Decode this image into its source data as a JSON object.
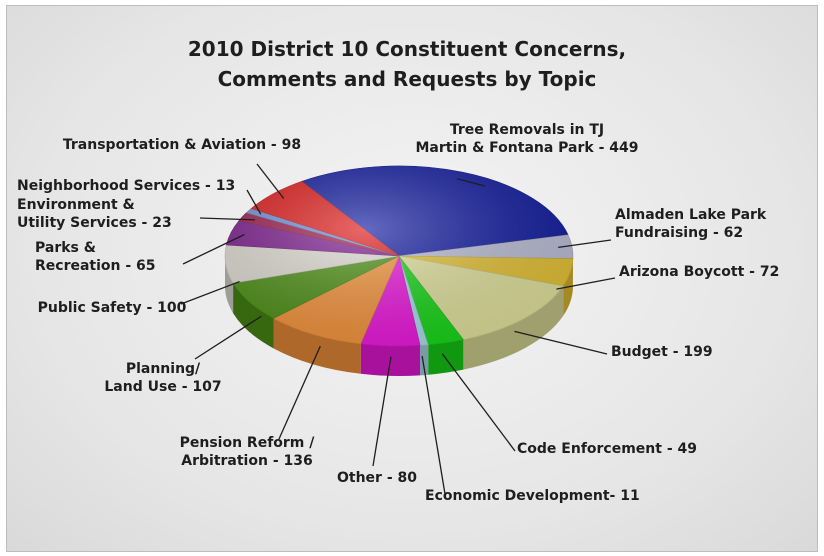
{
  "chart_data": {
    "type": "pie",
    "title": [
      "2010 District 10 Constituent Concerns,",
      "Comments and Requests by Topic"
    ],
    "slices": [
      {
        "label": [
          "Tree Removals in TJ",
          "Martin & Fontana Park - 449"
        ],
        "value": 449,
        "color": "#101a9e"
      },
      {
        "label": [
          "Almaden Lake Park",
          "Fundraising - 62"
        ],
        "value": 62,
        "color": "#b9bcd3"
      },
      {
        "label": [
          "Arizona Boycott - 72"
        ],
        "value": 72,
        "color": "#e2c033"
      },
      {
        "label": [
          "Budget - 199"
        ],
        "value": 199,
        "color": "#dede9a"
      },
      {
        "label": [
          "Code Enforcement - 49"
        ],
        "value": 49,
        "color": "#17d317"
      },
      {
        "label": [
          "Economic Development- 11"
        ],
        "value": 11,
        "color": "#a5d8e6"
      },
      {
        "label": [
          "Other - 80"
        ],
        "value": 80,
        "color": "#e817d9"
      },
      {
        "label": [
          "Pension Reform /",
          "Arbitration - 136"
        ],
        "value": 136,
        "color": "#f2923a"
      },
      {
        "label": [
          "Planning/",
          "Land Use - 107"
        ],
        "value": 107,
        "color": "#4c8f14"
      },
      {
        "label": [
          "Public Safety - 100"
        ],
        "value": 100,
        "color": "#dcdad0"
      },
      {
        "label": [
          "Parks &",
          "Recreation - 65"
        ],
        "value": 65,
        "color": "#7a1a8c"
      },
      {
        "label": [
          "Environment &",
          "Utility Services - 23"
        ],
        "value": 23,
        "color": "#9a1a4a"
      },
      {
        "label": [
          "Neighborhood Services - 13"
        ],
        "value": 13,
        "color": "#6f8fd6"
      },
      {
        "label": [
          "Transportation & Aviation - 98"
        ],
        "value": 98,
        "color": "#dd1717"
      }
    ],
    "legend": "none (callout labels)"
  }
}
